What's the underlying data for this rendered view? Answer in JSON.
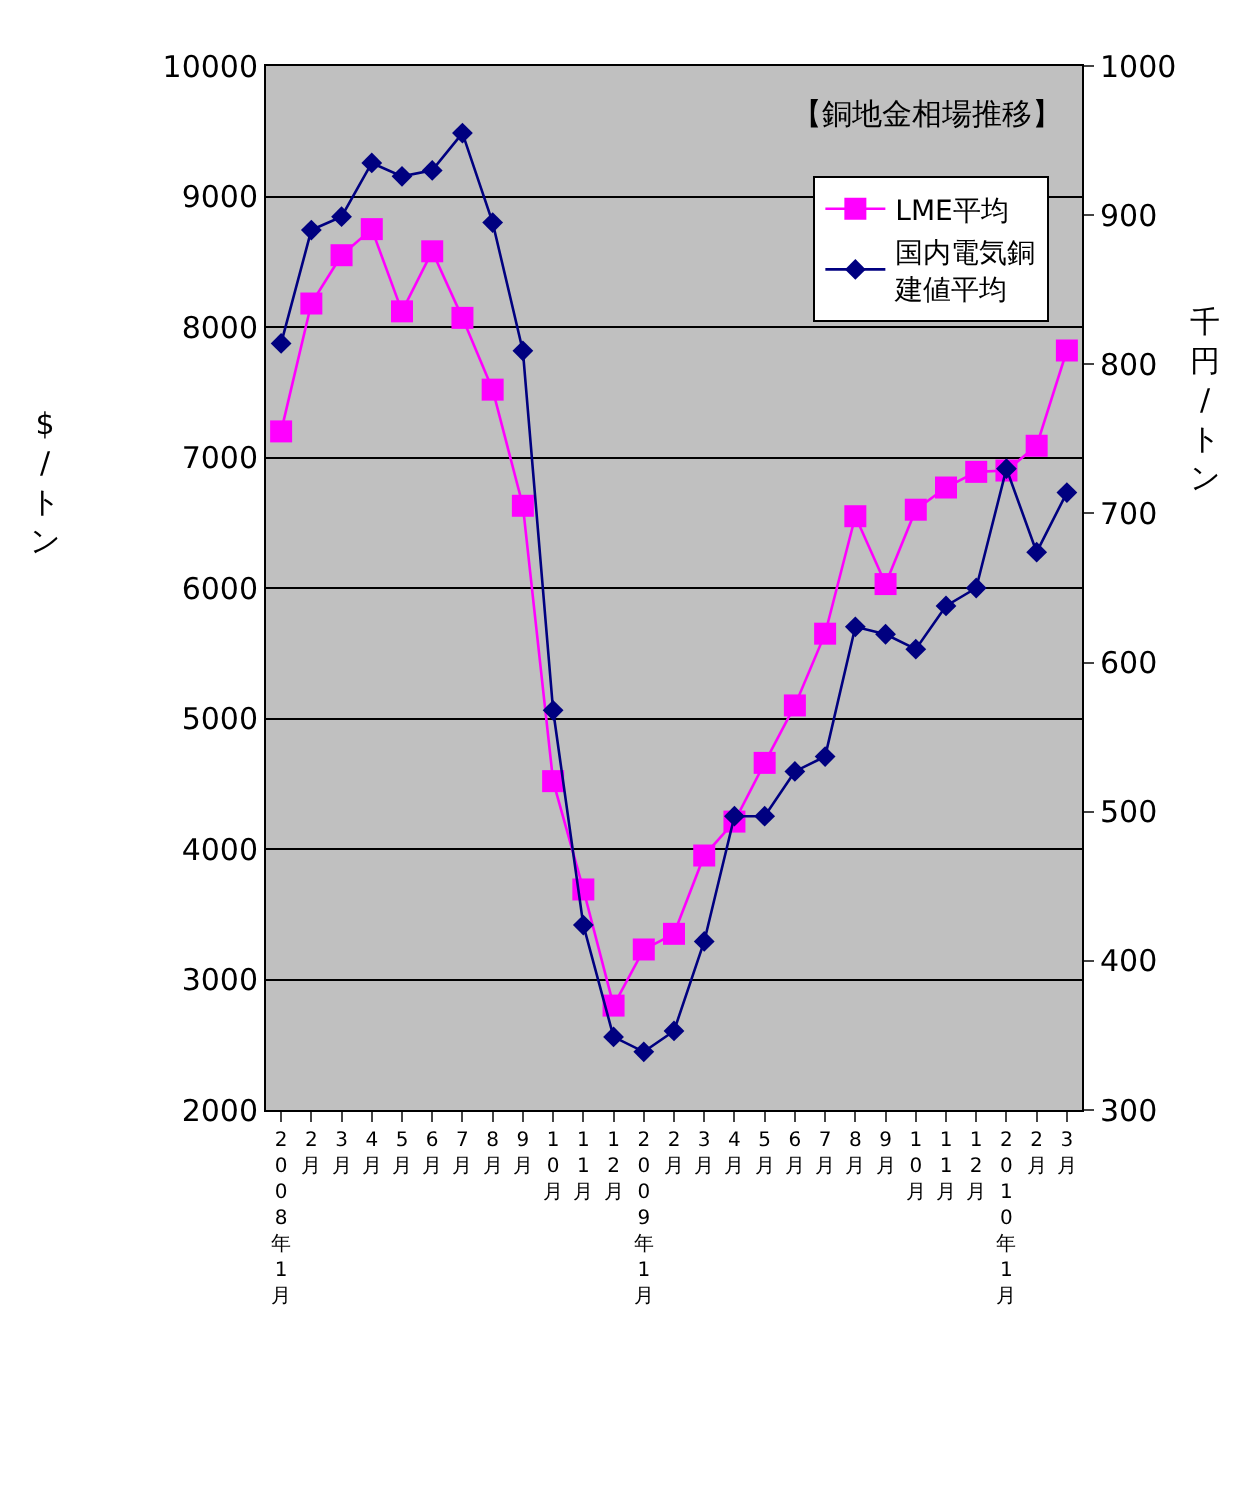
{
  "chart_data": {
    "type": "line",
    "title": "【銅地金相場推移】",
    "categories": [
      "2008年1月",
      "2月",
      "3月",
      "4月",
      "5月",
      "6月",
      "7月",
      "8月",
      "9月",
      "10月",
      "11月",
      "12月",
      "2009年1月",
      "2月",
      "3月",
      "4月",
      "5月",
      "6月",
      "7月",
      "8月",
      "9月",
      "10月",
      "11月",
      "12月",
      "2010年1月",
      "2月",
      "3月"
    ],
    "series": [
      {
        "name": "LME平均",
        "color": "#ff00ff",
        "marker": "square",
        "values": [
          7200,
          8180,
          8550,
          8750,
          8120,
          8580,
          8070,
          7520,
          6630,
          4520,
          3690,
          2800,
          3230,
          3350,
          3950,
          4210,
          4660,
          5100,
          5650,
          6550,
          6030,
          6600,
          6770,
          6890,
          6900,
          7090,
          7820
        ]
      },
      {
        "name": "国内電気銅建値平均",
        "color": "#000080",
        "marker": "diamond",
        "axis": "y2",
        "values": [
          814,
          890,
          899,
          935,
          926,
          930,
          955,
          895,
          809,
          568,
          424,
          349,
          339,
          353,
          413,
          497,
          497,
          527,
          537,
          624,
          619,
          609,
          638,
          650,
          730,
          674,
          714
        ]
      }
    ],
    "ylabel": "$/トン",
    "y2label": "千円/トン",
    "ylim": [
      2000,
      10000
    ],
    "yticks": [
      2000,
      3000,
      4000,
      5000,
      6000,
      7000,
      8000,
      9000,
      10000
    ],
    "y2lim": [
      300,
      1000
    ],
    "y2ticks": [
      300,
      400,
      500,
      600,
      700,
      800,
      900,
      1000
    ],
    "grid": "y",
    "legend": "top right"
  }
}
